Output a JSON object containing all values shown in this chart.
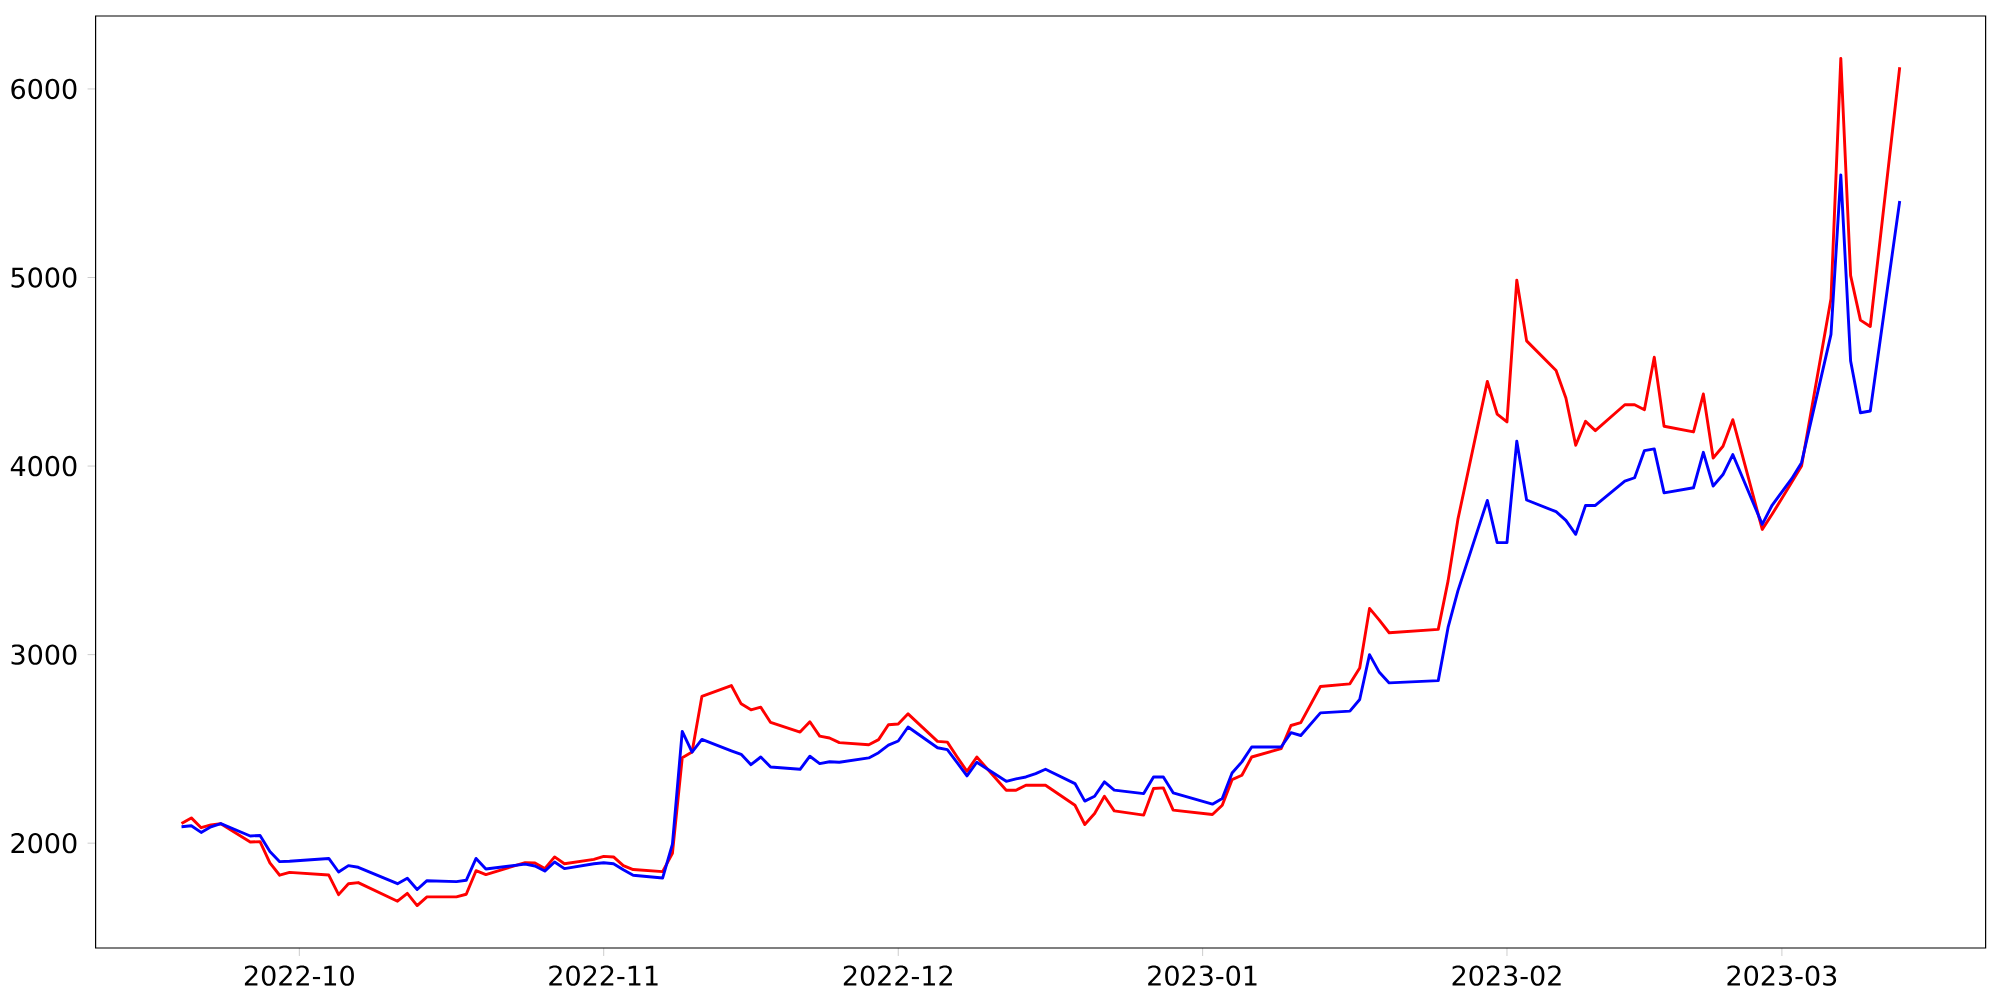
{
  "chart_data": {
    "type": "line",
    "x": [
      "2022-09-19",
      "2022-09-20",
      "2022-09-21",
      "2022-09-22",
      "2022-09-23",
      "2022-09-26",
      "2022-09-27",
      "2022-09-28",
      "2022-09-29",
      "2022-09-30",
      "2022-10-04",
      "2022-10-05",
      "2022-10-06",
      "2022-10-07",
      "2022-10-11",
      "2022-10-12",
      "2022-10-13",
      "2022-10-14",
      "2022-10-17",
      "2022-10-18",
      "2022-10-19",
      "2022-10-20",
      "2022-10-24",
      "2022-10-25",
      "2022-10-26",
      "2022-10-27",
      "2022-10-28",
      "2022-10-31",
      "2022-11-01",
      "2022-11-02",
      "2022-11-03",
      "2022-11-04",
      "2022-11-07",
      "2022-11-08",
      "2022-11-09",
      "2022-11-10",
      "2022-11-11",
      "2022-11-14",
      "2022-11-15",
      "2022-11-16",
      "2022-11-17",
      "2022-11-18",
      "2022-11-21",
      "2022-11-22",
      "2022-11-23",
      "2022-11-24",
      "2022-11-25",
      "2022-11-28",
      "2022-11-29",
      "2022-11-30",
      "2022-12-01",
      "2022-12-02",
      "2022-12-05",
      "2022-12-06",
      "2022-12-07",
      "2022-12-08",
      "2022-12-09",
      "2022-12-12",
      "2022-12-13",
      "2022-12-14",
      "2022-12-15",
      "2022-12-16",
      "2022-12-19",
      "2022-12-20",
      "2022-12-21",
      "2022-12-22",
      "2022-12-23",
      "2022-12-26",
      "2022-12-27",
      "2022-12-28",
      "2022-12-29",
      "2023-01-02",
      "2023-01-03",
      "2023-01-04",
      "2023-01-05",
      "2023-01-06",
      "2023-01-09",
      "2023-01-10",
      "2023-01-11",
      "2023-01-13",
      "2023-01-16",
      "2023-01-17",
      "2023-01-18",
      "2023-01-19",
      "2023-01-20",
      "2023-01-25",
      "2023-01-26",
      "2023-01-27",
      "2023-01-30",
      "2023-01-31",
      "2023-02-01",
      "2023-02-02",
      "2023-02-03",
      "2023-02-06",
      "2023-02-07",
      "2023-02-08",
      "2023-02-09",
      "2023-02-10",
      "2023-02-13",
      "2023-02-14",
      "2023-02-15",
      "2023-02-16",
      "2023-02-17",
      "2023-02-20",
      "2023-02-21",
      "2023-02-22",
      "2023-02-23",
      "2023-02-24",
      "2023-02-27",
      "2023-02-28",
      "2023-03-02",
      "2023-03-03",
      "2023-03-06",
      "2023-03-07",
      "2023-03-08",
      "2023-03-09",
      "2023-03-10",
      "2023-03-13"
    ],
    "series": [
      {
        "color": "#ff0000",
        "values": [
          2104,
          2134,
          2082,
          2097,
          2103,
          2006,
          2008,
          1895,
          1830,
          1845,
          1831,
          1727,
          1785,
          1791,
          1692,
          1734,
          1669,
          1715,
          1715,
          1729,
          1854,
          1833,
          1897,
          1895,
          1865,
          1927,
          1891,
          1914,
          1930,
          1927,
          1881,
          1860,
          1849,
          1946,
          2453,
          2483,
          2778,
          2836,
          2739,
          2707,
          2721,
          2640,
          2589,
          2644,
          2568,
          2558,
          2533,
          2522,
          2549,
          2628,
          2632,
          2686,
          2540,
          2536,
          2457,
          2381,
          2457,
          2281,
          2281,
          2307,
          2307,
          2307,
          2201,
          2099,
          2157,
          2249,
          2171,
          2149,
          2290,
          2293,
          2175,
          2152,
          2201,
          2337,
          2360,
          2457,
          2501,
          2624,
          2639,
          2831,
          2845,
          2929,
          3245,
          3183,
          3116,
          3134,
          3391,
          3717,
          4449,
          4276,
          4234,
          4986,
          4664,
          4507,
          4361,
          4110,
          4237,
          4188,
          4325,
          4325,
          4299,
          4577,
          4211,
          4181,
          4382,
          4043,
          4105,
          4246,
          3664,
          3744,
          3914,
          4000,
          4887,
          6162,
          5010,
          4774,
          4740,
          6115
        ]
      },
      {
        "color": "#0000ff",
        "values": [
          2087,
          2092,
          2057,
          2087,
          2104,
          2038,
          2041,
          1956,
          1902,
          1904,
          1919,
          1847,
          1881,
          1872,
          1785,
          1814,
          1754,
          1801,
          1796,
          1803,
          1919,
          1863,
          1889,
          1879,
          1852,
          1900,
          1865,
          1891,
          1896,
          1891,
          1859,
          1830,
          1815,
          1995,
          2593,
          2483,
          2550,
          2490,
          2471,
          2416,
          2457,
          2404,
          2392,
          2461,
          2422,
          2432,
          2429,
          2452,
          2480,
          2520,
          2542,
          2616,
          2506,
          2496,
          2427,
          2357,
          2429,
          2328,
          2341,
          2351,
          2369,
          2392,
          2316,
          2223,
          2249,
          2325,
          2281,
          2263,
          2351,
          2351,
          2267,
          2207,
          2237,
          2372,
          2431,
          2510,
          2510,
          2586,
          2571,
          2691,
          2700,
          2762,
          3000,
          2906,
          2850,
          2862,
          3144,
          3338,
          3818,
          3594,
          3594,
          4132,
          3820,
          3758,
          3712,
          3638,
          3791,
          3791,
          3920,
          3938,
          4082,
          4091,
          3858,
          3885,
          4073,
          3894,
          3955,
          4061,
          3691,
          3792,
          3933,
          4018,
          4698,
          5544,
          4557,
          4283,
          4292,
          5406
        ]
      }
    ],
    "xlim": [
      "2022-09-10T06:00",
      "2023-03-21T18:00"
    ],
    "ylim": [
      1444,
      6387
    ],
    "xticks": [
      {
        "value": "2022-10-01",
        "label": "2022-10"
      },
      {
        "value": "2022-11-01",
        "label": "2022-11"
      },
      {
        "value": "2022-12-01",
        "label": "2022-12"
      },
      {
        "value": "2023-01-01",
        "label": "2023-01"
      },
      {
        "value": "2023-02-01",
        "label": "2023-02"
      },
      {
        "value": "2023-03-01",
        "label": "2023-03"
      }
    ],
    "yticks": [
      2000,
      3000,
      4000,
      5000,
      6000
    ]
  }
}
